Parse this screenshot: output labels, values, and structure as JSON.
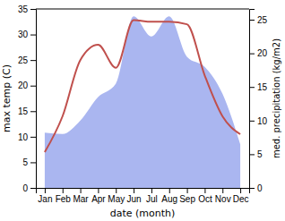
{
  "chart_data": {
    "type": "line",
    "categories": [
      "Jan",
      "Feb",
      "Mar",
      "Apr",
      "May",
      "Jun",
      "Jul",
      "Aug",
      "Sep",
      "Oct",
      "Nov",
      "Dec"
    ],
    "x_label": "date (month)",
    "y_label": "max temp (C)",
    "y2_label": "med. precipitation (kg/m2)",
    "ylim": [
      0,
      35
    ],
    "yticks": [
      0,
      5,
      10,
      15,
      20,
      25,
      30,
      35
    ],
    "y2lim": [
      0,
      26.6
    ],
    "y2ticks": [
      0,
      5,
      10,
      15,
      20,
      25
    ],
    "series": [
      {
        "name": "med. precipitation",
        "type": "area",
        "axis": "y2",
        "color": "#aab6f0",
        "values": [
          8.2,
          8,
          10,
          13.5,
          15.5,
          25.5,
          22.5,
          25.5,
          19.5,
          18,
          14,
          6.5
        ]
      },
      {
        "name": "max temp",
        "type": "line",
        "axis": "y",
        "color": "#c0504d",
        "values": [
          7,
          14,
          25,
          28,
          23.5,
          32.8,
          32.5,
          32.5,
          32,
          22,
          14,
          10.5
        ]
      }
    ]
  }
}
